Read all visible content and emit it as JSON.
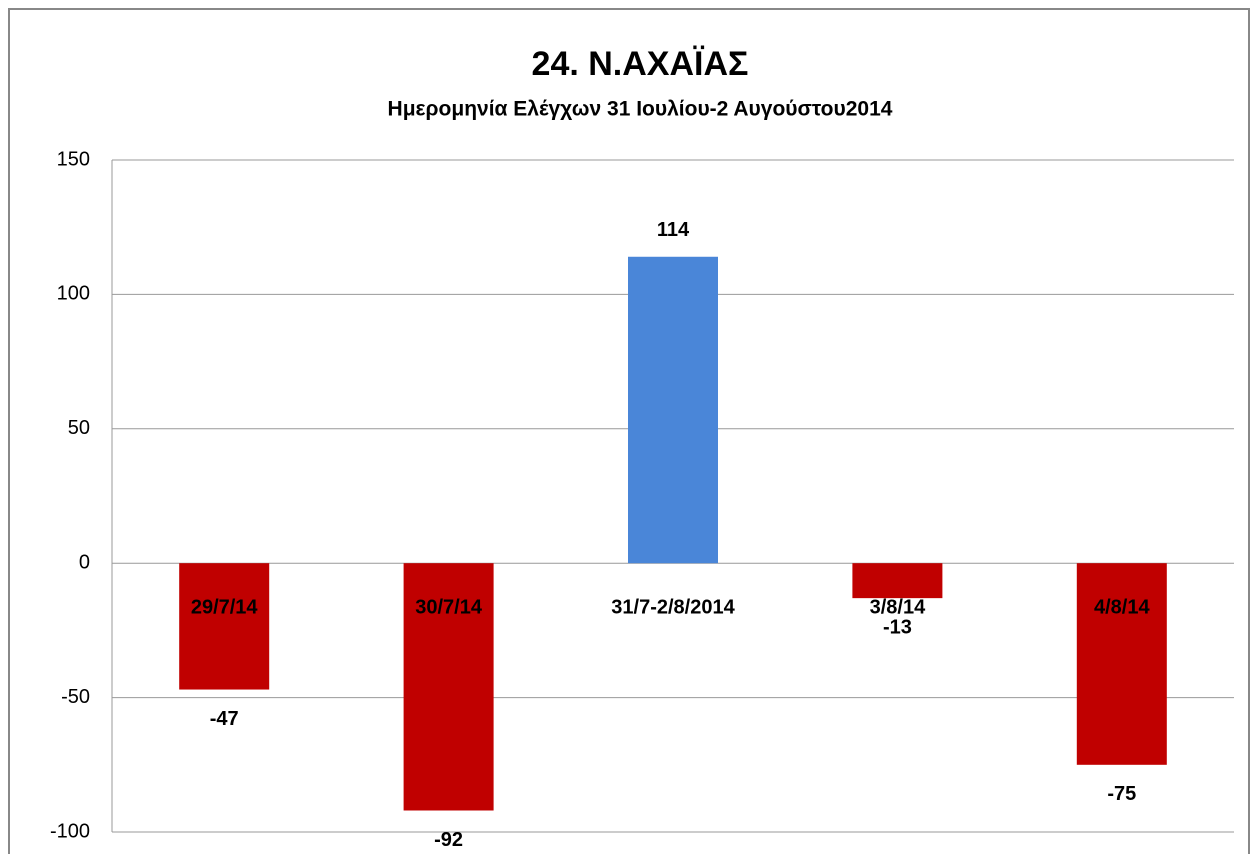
{
  "chart_data": {
    "type": "bar",
    "title": "24. Ν.ΑΧΑΪΑΣ",
    "subtitle": "Ημερομηνία Ελέγχων 31 Ιουλίου-2 Αυγούστου2014",
    "categories": [
      "29/7/14",
      "30/7/14",
      "31/7-2/8/2014",
      "3/8/14",
      "4/8/14"
    ],
    "values": [
      -47,
      -92,
      114,
      -13,
      -75
    ],
    "colors": [
      "#c00000",
      "#c00000",
      "#4a86d8",
      "#c00000",
      "#c00000"
    ],
    "ylim": [
      -100,
      150
    ],
    "yticks": [
      -100,
      -50,
      0,
      50,
      100,
      150
    ],
    "grid": true
  }
}
